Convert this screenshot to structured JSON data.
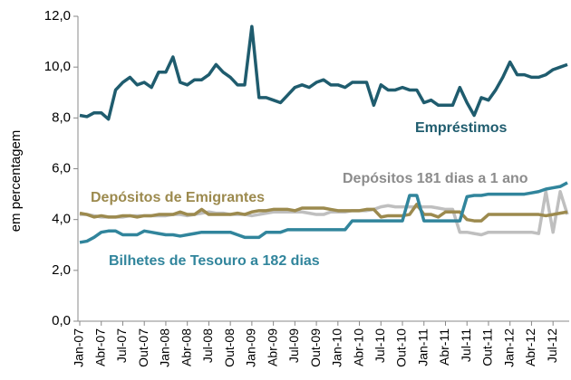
{
  "chart_data": {
    "type": "line",
    "y_label": "em percentagem",
    "categories": [
      "Jan-07",
      null,
      null,
      "Abr-07",
      null,
      null,
      "Jul-07",
      null,
      null,
      "Out-07",
      null,
      null,
      "Jan-08",
      null,
      null,
      "Abr-08",
      null,
      null,
      "Jul-08",
      null,
      null,
      "Out-08",
      null,
      null,
      "Jan-09",
      null,
      null,
      "Abr-09",
      null,
      null,
      "Jul-09",
      null,
      null,
      "Out-09",
      null,
      null,
      "Jan-10",
      null,
      null,
      "Abr-10",
      null,
      null,
      "Jul-10",
      null,
      null,
      "Out-10",
      null,
      null,
      "Jan-11",
      null,
      null,
      "Abr-11",
      null,
      null,
      "Jul-11",
      null,
      null,
      "Out-11",
      null,
      null,
      "Jan-12",
      null,
      null,
      "Abr-12",
      null,
      null,
      "Jul-12",
      null,
      null
    ],
    "series": [
      {
        "name": "Empréstimos",
        "color": "#1f5c6e",
        "values": [
          8.1,
          8.05,
          8.2,
          8.2,
          7.95,
          9.1,
          9.4,
          9.6,
          9.3,
          9.4,
          9.2,
          9.8,
          9.8,
          10.4,
          9.4,
          9.3,
          9.5,
          9.5,
          9.7,
          10.1,
          9.8,
          9.6,
          9.3,
          9.3,
          11.6,
          8.8,
          8.8,
          8.7,
          8.6,
          8.9,
          9.2,
          9.3,
          9.2,
          9.4,
          9.5,
          9.3,
          9.3,
          9.2,
          9.4,
          9.4,
          9.4,
          8.5,
          9.3,
          9.1,
          9.1,
          9.2,
          9.1,
          9.1,
          8.6,
          8.7,
          8.5,
          8.5,
          8.5,
          9.2,
          8.6,
          8.1,
          8.8,
          8.7,
          9.1,
          9.6,
          10.2,
          9.7,
          9.7,
          9.6,
          9.6,
          9.7,
          9.9,
          10.0,
          10.1
        ]
      },
      {
        "name": "Depósitos 181 dias a 1 ano",
        "color": "#bfbfbf",
        "values": [
          4.2,
          4.2,
          4.15,
          4.1,
          4.1,
          4.1,
          4.1,
          4.15,
          4.15,
          4.15,
          4.15,
          4.15,
          4.15,
          4.2,
          4.2,
          4.15,
          4.2,
          4.25,
          4.3,
          4.25,
          4.25,
          4.2,
          4.2,
          4.2,
          4.15,
          4.2,
          4.25,
          4.3,
          4.3,
          4.3,
          4.3,
          4.3,
          4.25,
          4.2,
          4.2,
          4.3,
          4.3,
          4.3,
          4.35,
          4.35,
          4.35,
          4.4,
          4.5,
          4.55,
          4.5,
          4.5,
          4.5,
          4.5,
          4.5,
          4.5,
          4.45,
          4.4,
          4.4,
          3.5,
          3.5,
          3.45,
          3.4,
          3.5,
          3.5,
          3.5,
          3.5,
          3.5,
          3.5,
          3.5,
          3.45,
          5.1,
          3.5,
          5.1,
          4.2
        ]
      },
      {
        "name": "Depósitos de Emigrantes",
        "color": "#9c8a4e",
        "values": [
          4.25,
          4.2,
          4.1,
          4.15,
          4.1,
          4.1,
          4.15,
          4.15,
          4.1,
          4.15,
          4.15,
          4.2,
          4.2,
          4.2,
          4.3,
          4.2,
          4.2,
          4.4,
          4.2,
          4.2,
          4.2,
          4.2,
          4.25,
          4.2,
          4.3,
          4.35,
          4.35,
          4.4,
          4.4,
          4.4,
          4.35,
          4.45,
          4.45,
          4.45,
          4.45,
          4.4,
          4.35,
          4.35,
          4.35,
          4.35,
          4.4,
          4.4,
          4.1,
          4.15,
          4.15,
          4.15,
          4.2,
          4.6,
          4.2,
          4.2,
          4.1,
          4.3,
          4.3,
          4.3,
          4.0,
          3.95,
          3.95,
          4.2,
          4.2,
          4.2,
          4.2,
          4.2,
          4.2,
          4.2,
          4.2,
          4.15,
          4.2,
          4.25,
          4.3
        ]
      },
      {
        "name": "Bilhetes de Tesouro a 182 dias",
        "color": "#31859c",
        "values": [
          3.1,
          3.15,
          3.3,
          3.5,
          3.55,
          3.55,
          3.4,
          3.4,
          3.4,
          3.55,
          3.5,
          3.45,
          3.4,
          3.4,
          3.35,
          3.4,
          3.45,
          3.5,
          3.5,
          3.5,
          3.5,
          3.5,
          3.4,
          3.3,
          3.3,
          3.3,
          3.5,
          3.5,
          3.5,
          3.6,
          3.6,
          3.6,
          3.6,
          3.6,
          3.6,
          3.6,
          3.6,
          3.6,
          3.95,
          3.95,
          3.95,
          3.95,
          3.95,
          3.95,
          3.95,
          3.95,
          4.95,
          4.95,
          3.95,
          3.95,
          3.95,
          3.95,
          3.95,
          3.95,
          4.9,
          4.95,
          4.95,
          5.0,
          5.0,
          5.0,
          5.0,
          5.0,
          5.0,
          5.05,
          5.1,
          5.2,
          5.25,
          5.3,
          5.45
        ]
      }
    ],
    "ylim": [
      0,
      12
    ],
    "yticks": [
      {
        "value": 0,
        "label": "0,0"
      },
      {
        "value": 2,
        "label": "2,0"
      },
      {
        "value": 4,
        "label": "4,0"
      },
      {
        "value": 6,
        "label": "6,0"
      },
      {
        "value": 8,
        "label": "8,0"
      },
      {
        "value": 10,
        "label": "10,0"
      },
      {
        "value": 12,
        "label": "12,0"
      }
    ]
  }
}
